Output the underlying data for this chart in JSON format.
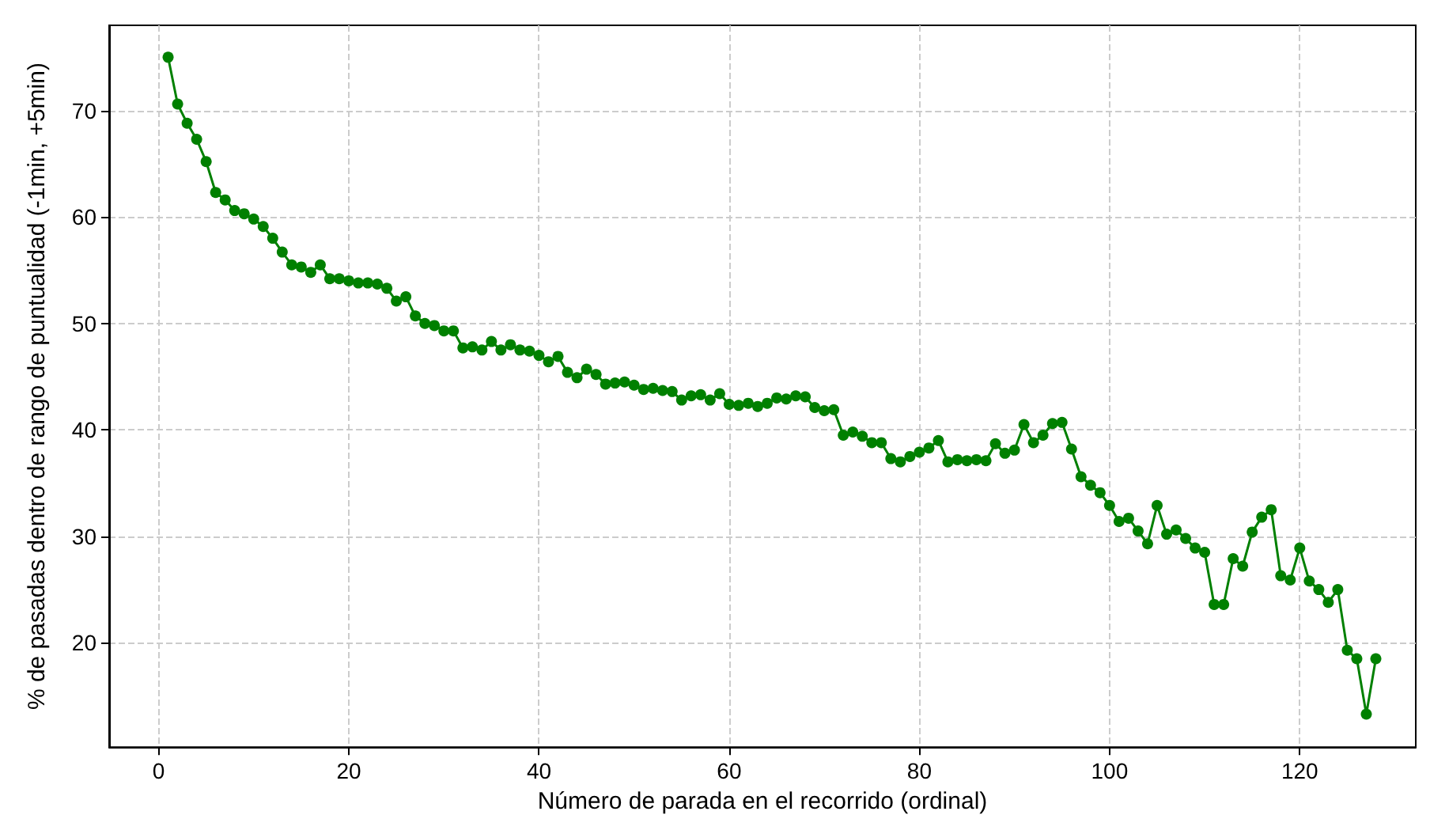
{
  "chart_data": {
    "type": "line",
    "xlabel": "Número de parada en el recorrido (ordinal)",
    "ylabel": "% de pasadas dentro de rango de puntualidad (-1min, +5min)",
    "x": [
      1,
      2,
      3,
      4,
      5,
      6,
      7,
      8,
      9,
      10,
      11,
      12,
      13,
      14,
      15,
      16,
      17,
      18,
      19,
      20,
      21,
      22,
      23,
      24,
      25,
      26,
      27,
      28,
      29,
      30,
      31,
      32,
      33,
      34,
      35,
      36,
      37,
      38,
      39,
      40,
      41,
      42,
      43,
      44,
      45,
      46,
      47,
      48,
      49,
      50,
      51,
      52,
      53,
      54,
      55,
      56,
      57,
      58,
      59,
      60,
      61,
      62,
      63,
      64,
      65,
      66,
      67,
      68,
      69,
      70,
      71,
      72,
      73,
      74,
      75,
      76,
      77,
      78,
      79,
      80,
      81,
      82,
      83,
      84,
      85,
      86,
      87,
      88,
      89,
      90,
      91,
      92,
      93,
      94,
      95,
      96,
      97,
      98,
      99,
      100,
      101,
      102,
      103,
      104,
      105,
      106,
      107,
      108,
      109,
      110,
      111,
      112,
      113,
      114,
      115,
      116,
      117,
      118,
      119,
      120,
      121,
      122,
      123,
      124,
      125,
      126,
      127,
      128
    ],
    "series": [
      {
        "color": "#008000",
        "values": [
          75.0,
          70.6,
          68.8,
          67.3,
          65.2,
          62.3,
          61.6,
          60.6,
          60.3,
          59.8,
          59.1,
          58.0,
          56.7,
          55.5,
          55.3,
          54.8,
          55.5,
          54.2,
          54.2,
          54.0,
          53.8,
          53.8,
          53.7,
          53.3,
          52.1,
          52.5,
          50.7,
          50.0,
          49.8,
          49.3,
          49.3,
          47.7,
          47.8,
          47.5,
          48.3,
          47.5,
          48.0,
          47.5,
          47.4,
          47.0,
          46.4,
          46.9,
          45.4,
          44.9,
          45.7,
          45.2,
          44.3,
          44.4,
          44.5,
          44.2,
          43.8,
          43.9,
          43.7,
          43.6,
          42.8,
          43.2,
          43.3,
          42.8,
          43.4,
          42.4,
          42.3,
          42.5,
          42.2,
          42.5,
          43.0,
          42.9,
          43.2,
          43.1,
          42.1,
          41.8,
          41.9,
          39.5,
          39.8,
          39.4,
          38.8,
          38.8,
          37.3,
          37.0,
          37.5,
          37.9,
          38.3,
          39.0,
          37.0,
          37.2,
          37.1,
          37.2,
          37.1,
          38.7,
          37.8,
          38.1,
          40.5,
          38.8,
          39.5,
          40.6,
          40.7,
          38.2,
          35.6,
          34.8,
          34.1,
          32.9,
          31.4,
          31.7,
          30.5,
          29.3,
          32.9,
          30.2,
          30.6,
          29.8,
          28.9,
          28.5,
          23.6,
          23.6,
          27.9,
          27.2,
          30.4,
          31.8,
          32.5,
          26.3,
          25.9,
          28.9,
          25.8,
          25.0,
          23.8,
          25.0,
          19.3,
          18.5,
          13.3,
          18.5
        ]
      }
    ],
    "xlim": [
      -5.2,
      132.2
    ],
    "xticks": [
      0,
      20,
      40,
      60,
      80,
      100,
      120
    ],
    "ylim": [
      10.2,
      78.0
    ],
    "yticks": [
      20,
      30,
      40,
      50,
      60,
      70
    ],
    "grid": true,
    "marker": "circle",
    "line_style": "solid"
  }
}
